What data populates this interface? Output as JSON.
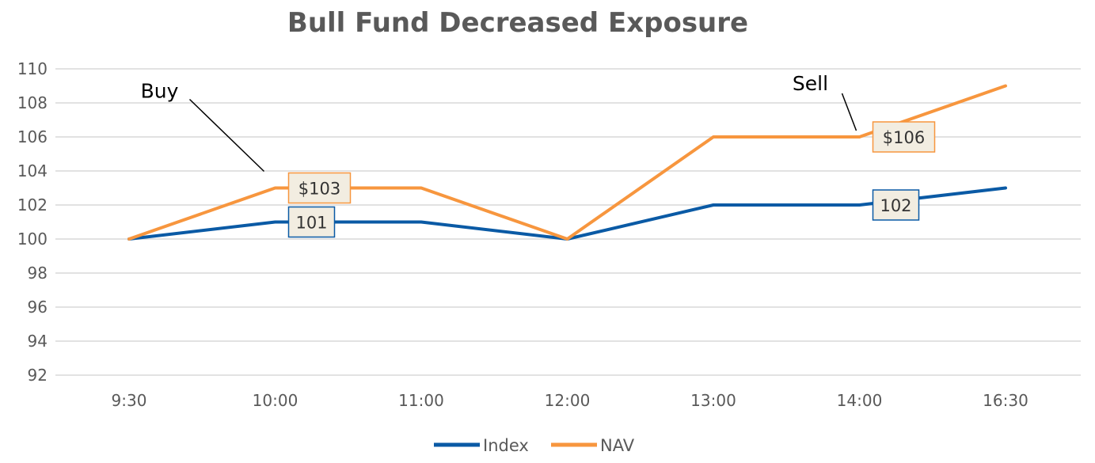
{
  "chart_data": {
    "type": "line",
    "title": "Bull Fund Decreased Exposure",
    "categories": [
      "9:30",
      "10:00",
      "11:00",
      "12:00",
      "13:00",
      "14:00",
      "16:30"
    ],
    "yticks": [
      "110",
      "108",
      "106",
      "104",
      "102",
      "100",
      "98",
      "96",
      "94",
      "92"
    ],
    "ylim": [
      92,
      110
    ],
    "grid": true,
    "legend_position": "bottom",
    "series": [
      {
        "name": "Index",
        "color": "#0a5aa5",
        "values": [
          100,
          101,
          101,
          100,
          102,
          102,
          103
        ]
      },
      {
        "name": "NAV",
        "color": "#f7963e",
        "values": [
          100,
          103,
          103,
          100,
          106,
          106,
          109
        ]
      }
    ],
    "data_labels": [
      {
        "series": "NAV",
        "category": "10:00",
        "text": "$103"
      },
      {
        "series": "Index",
        "category": "10:00",
        "text": "101"
      },
      {
        "series": "NAV",
        "category": "14:00",
        "text": "$106"
      },
      {
        "series": "Index",
        "category": "14:00",
        "text": "102"
      }
    ],
    "annotations": [
      {
        "text": "Buy",
        "category": "10:00",
        "series": "NAV"
      },
      {
        "text": "Sell",
        "category": "14:00",
        "series": "NAV"
      }
    ]
  }
}
